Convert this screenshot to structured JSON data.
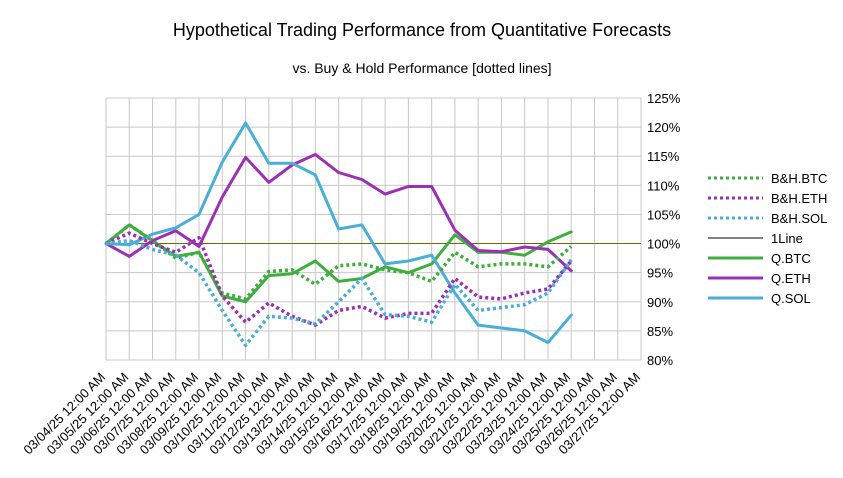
{
  "chart_data": {
    "type": "line",
    "title": "Hypothetical Trading Performance from Quantitative Forecasts",
    "subtitle": "vs. Buy & Hold Performance [dotted lines]",
    "categories": [
      "03/04/25 12:00 AM",
      "03/05/25 12:00 AM",
      "03/06/25 12:00 AM",
      "03/07/25 12:00 AM",
      "03/08/25 12:00 AM",
      "03/09/25 12:00 AM",
      "03/10/25 12:00 AM",
      "03/11/25 12:00 AM",
      "03/12/25 12:00 AM",
      "03/13/25 12:00 AM",
      "03/14/25 12:00 AM",
      "03/15/25 12:00 AM",
      "03/16/25 12:00 AM",
      "03/17/25 12:00 AM",
      "03/18/25 12:00 AM",
      "03/19/25 12:00 AM",
      "03/20/25 12:00 AM",
      "03/21/25 12:00 AM",
      "03/22/25 12:00 AM",
      "03/23/25 12:00 AM",
      "03/24/25 12:00 AM",
      "03/25/25 12:00 AM",
      "03/26/25 12:00 AM",
      "03/27/25 12:00 AM"
    ],
    "ylim": [
      80,
      125
    ],
    "yticks": [
      80,
      85,
      90,
      95,
      100,
      105,
      110,
      115,
      120,
      125
    ],
    "ytick_labels": [
      "80%",
      "85%",
      "90%",
      "95%",
      "100%",
      "105%",
      "110%",
      "115%",
      "120%",
      "125%"
    ],
    "y_axis_side": "right",
    "grid": true,
    "legend_position": "right",
    "reference_line": {
      "name": "1Line",
      "value": 100,
      "color": "#6b6b00"
    },
    "series": [
      {
        "name": "B&H.BTC",
        "style": "dotted",
        "color": "#3fae3f",
        "values": [
          100,
          103.2,
          100.5,
          97.5,
          98.5,
          91.5,
          90.5,
          95.2,
          95.5,
          93,
          96.2,
          96.5,
          95.5,
          95,
          93.5,
          98.5,
          96,
          96.5,
          96.5,
          96,
          99.5,
          null,
          null,
          null
        ]
      },
      {
        "name": "B&H.ETH",
        "style": "dotted",
        "color": "#9b30b3",
        "values": [
          100,
          101.8,
          100,
          98.5,
          101,
          91,
          86.5,
          89.8,
          87.5,
          86,
          88.5,
          89.2,
          87.2,
          88,
          88,
          94,
          90.8,
          90.5,
          91.5,
          92.2,
          97,
          null,
          null,
          null
        ]
      },
      {
        "name": "B&H.SOL",
        "style": "dotted",
        "color": "#4aaed6",
        "values": [
          100,
          100.5,
          99,
          98,
          95,
          88.5,
          82.5,
          87.5,
          87.2,
          86.2,
          90,
          94,
          87.8,
          87.5,
          86.5,
          93,
          88.5,
          89,
          89.5,
          91.5,
          97.2,
          null,
          null,
          null
        ]
      },
      {
        "name": "Q.BTC",
        "style": "solid",
        "color": "#3fae3f",
        "values": [
          100,
          103.2,
          100.5,
          97.8,
          98.5,
          91,
          90,
          94.5,
          94.8,
          97,
          93.5,
          94,
          96,
          95,
          96.5,
          101.5,
          98.5,
          98.5,
          98,
          100.3,
          102,
          null,
          null,
          null
        ]
      },
      {
        "name": "Q.ETH",
        "style": "solid",
        "color": "#9b30b3",
        "values": [
          100,
          97.8,
          100.5,
          102.2,
          99.5,
          108,
          114.8,
          110.5,
          113.5,
          115.3,
          112.2,
          111,
          108.5,
          109.8,
          109.8,
          102.3,
          98.8,
          98.6,
          99.4,
          99,
          95.3,
          null,
          null,
          null
        ]
      },
      {
        "name": "Q.SOL",
        "style": "solid",
        "color": "#4aaed6",
        "values": [
          100,
          99.8,
          101.6,
          102.7,
          105,
          114,
          120.7,
          113.8,
          113.8,
          111.8,
          102.5,
          103.2,
          96.5,
          97,
          98,
          91.5,
          86,
          85.5,
          85,
          83,
          87.7,
          null,
          null,
          null
        ]
      }
    ]
  }
}
